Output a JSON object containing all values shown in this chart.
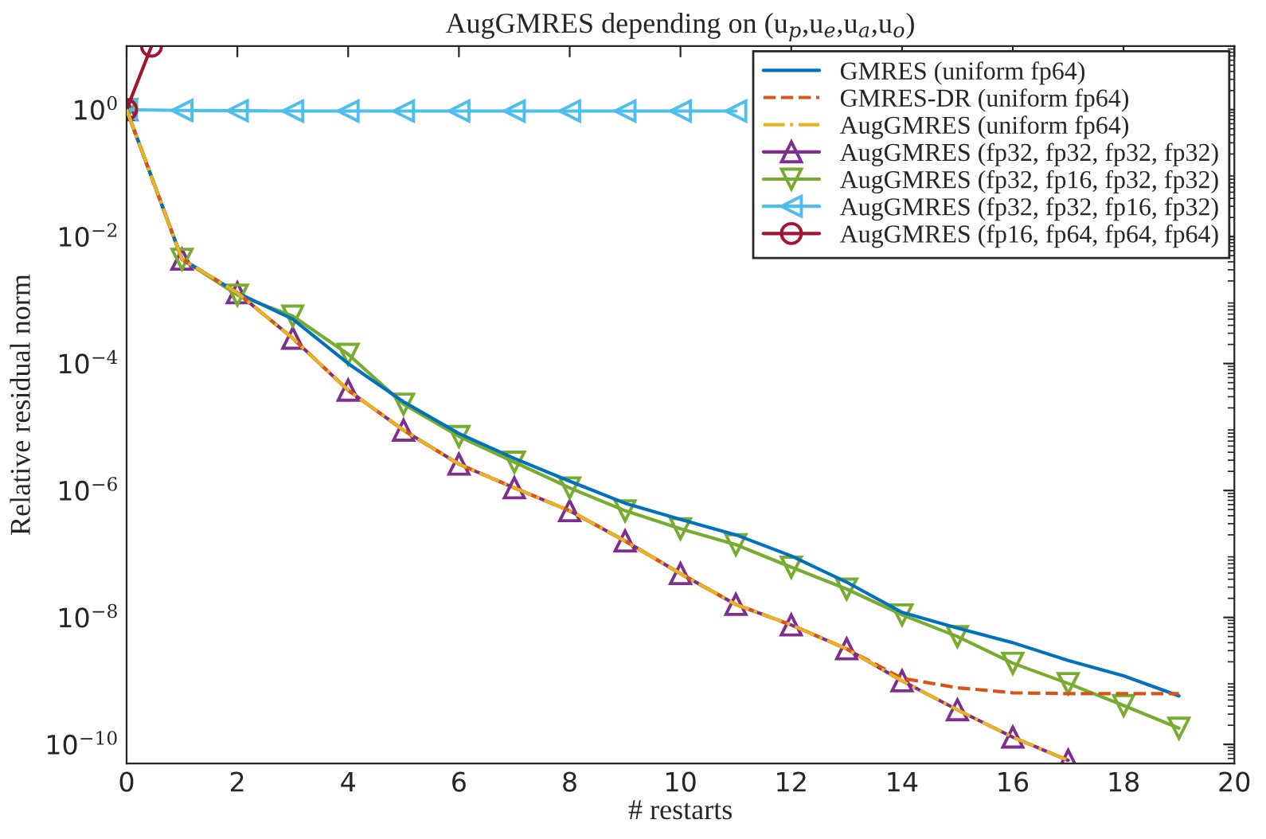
{
  "chart_data": {
    "type": "line",
    "title": "AugGMRES depending on (u$_{p}$,u$_{e}$,u$_{a}$,u$_{o}$)",
    "xlabel": "# restarts",
    "ylabel": "Relative residual norm",
    "x": [
      0,
      1,
      2,
      3,
      4,
      5,
      6,
      7,
      8,
      9,
      10,
      11,
      12,
      13,
      14,
      15,
      16,
      17,
      18,
      19
    ],
    "series": [
      {
        "name": "GMRES (uniform fp64)",
        "color": "#0072bd",
        "line_style": "solid",
        "marker": "none",
        "values": [
          1,
          0.0044,
          0.0013,
          0.0005,
          0.0001,
          2.5e-05,
          7.9e-06,
          3.2e-06,
          1.4e-06,
          6.3e-07,
          3.5e-07,
          2e-07,
          9.3e-08,
          3.6e-08,
          1.2e-08,
          6.8e-09,
          4e-09,
          2.1e-09,
          1.2e-09,
          5.8e-10
        ]
      },
      {
        "name": "GMRES-DR (uniform fp64)",
        "color": "#d95319",
        "line_style": "dashed",
        "marker": "none",
        "values": [
          1,
          0.0044,
          0.0013,
          0.00025,
          3.8e-05,
          8.9e-06,
          2.6e-06,
          1.1e-06,
          4.8e-07,
          1.6e-07,
          4.9e-08,
          1.6e-08,
          7.6e-09,
          3.2e-09,
          1.1e-09,
          7.8e-10,
          6.5e-10,
          6.3e-10,
          6.3e-10,
          6.3e-10
        ]
      },
      {
        "name": "AugGMRES (uniform fp64)",
        "color": "#edb120",
        "line_style": "dashdot",
        "marker": "none",
        "x": [
          0,
          1,
          2,
          3,
          4,
          5,
          6,
          7,
          8,
          9,
          10,
          11,
          12,
          13,
          14,
          15,
          16,
          17
        ],
        "values": [
          1,
          0.0044,
          0.0013,
          0.00025,
          3.8e-05,
          8.9e-06,
          2.6e-06,
          1.1e-06,
          4.8e-07,
          1.6e-07,
          4.9e-08,
          1.6e-08,
          7.6e-09,
          3.2e-09,
          1e-09,
          3.5e-10,
          1.3e-10,
          5.6e-11
        ]
      },
      {
        "name": "AugGMRES (fp32, fp32, fp32, fp32)",
        "color": "#7e2f8e",
        "line_style": "solid",
        "marker": "triangle",
        "x": [
          0,
          1,
          2,
          3,
          4,
          5,
          6,
          7,
          8,
          9,
          10,
          11,
          12,
          13,
          14,
          15,
          16,
          17
        ],
        "values": [
          1,
          0.0044,
          0.0013,
          0.00025,
          3.8e-05,
          8.9e-06,
          2.6e-06,
          1.1e-06,
          4.8e-07,
          1.6e-07,
          4.9e-08,
          1.6e-08,
          7.6e-09,
          3.2e-09,
          1e-09,
          3.5e-10,
          1.3e-10,
          5.6e-11
        ]
      },
      {
        "name": "AugGMRES (fp32, fp16, fp32, fp32)",
        "color": "#77ac30",
        "line_style": "solid",
        "marker": "triangle_down",
        "values": [
          1,
          0.0044,
          0.0012,
          0.00056,
          0.00014,
          2.3e-05,
          7.1e-06,
          2.8e-06,
          1.1e-06,
          4.8e-07,
          2.5e-07,
          1.4e-07,
          6.2e-08,
          2.8e-08,
          1.1e-08,
          5e-09,
          1.9e-09,
          9.1e-10,
          4.1e-10,
          1.8e-10
        ]
      },
      {
        "name": "AugGMRES (fp32, fp32, fp16, fp32)",
        "color": "#4dbeee",
        "line_style": "solid",
        "marker": "triangle_left",
        "x": [
          0,
          1,
          2,
          3,
          4,
          5,
          6,
          7,
          8,
          9,
          10,
          11
        ],
        "values": [
          1,
          0.97,
          0.96,
          0.95,
          0.95,
          0.95,
          0.95,
          0.95,
          0.95,
          0.95,
          0.95,
          0.95
        ]
      },
      {
        "name": "AugGMRES (fp16, fp64, fp64, fp64)",
        "color": "#a2142f",
        "line_style": "solid",
        "marker": "circle",
        "x": [
          0,
          0.45
        ],
        "values": [
          1,
          10
        ]
      }
    ],
    "log": "y",
    "xlim": [
      0,
      20
    ],
    "xticks": [
      0,
      2,
      4,
      6,
      8,
      10,
      12,
      14,
      16,
      18,
      20
    ],
    "ylim": [
      5e-11,
      10
    ],
    "yticks": [
      {
        "value": 1e-10,
        "label": "10$^{−10}$"
      },
      {
        "value": 1e-08,
        "label": "10$^{−8}$"
      },
      {
        "value": 1e-06,
        "label": "10$^{−6}$"
      },
      {
        "value": 0.0001,
        "label": "10$^{−4}$"
      },
      {
        "value": 0.01,
        "label": "10$^{−2}$"
      },
      {
        "value": 1,
        "label": "10$^{0}$"
      }
    ],
    "grid": false,
    "legend": "top right"
  }
}
